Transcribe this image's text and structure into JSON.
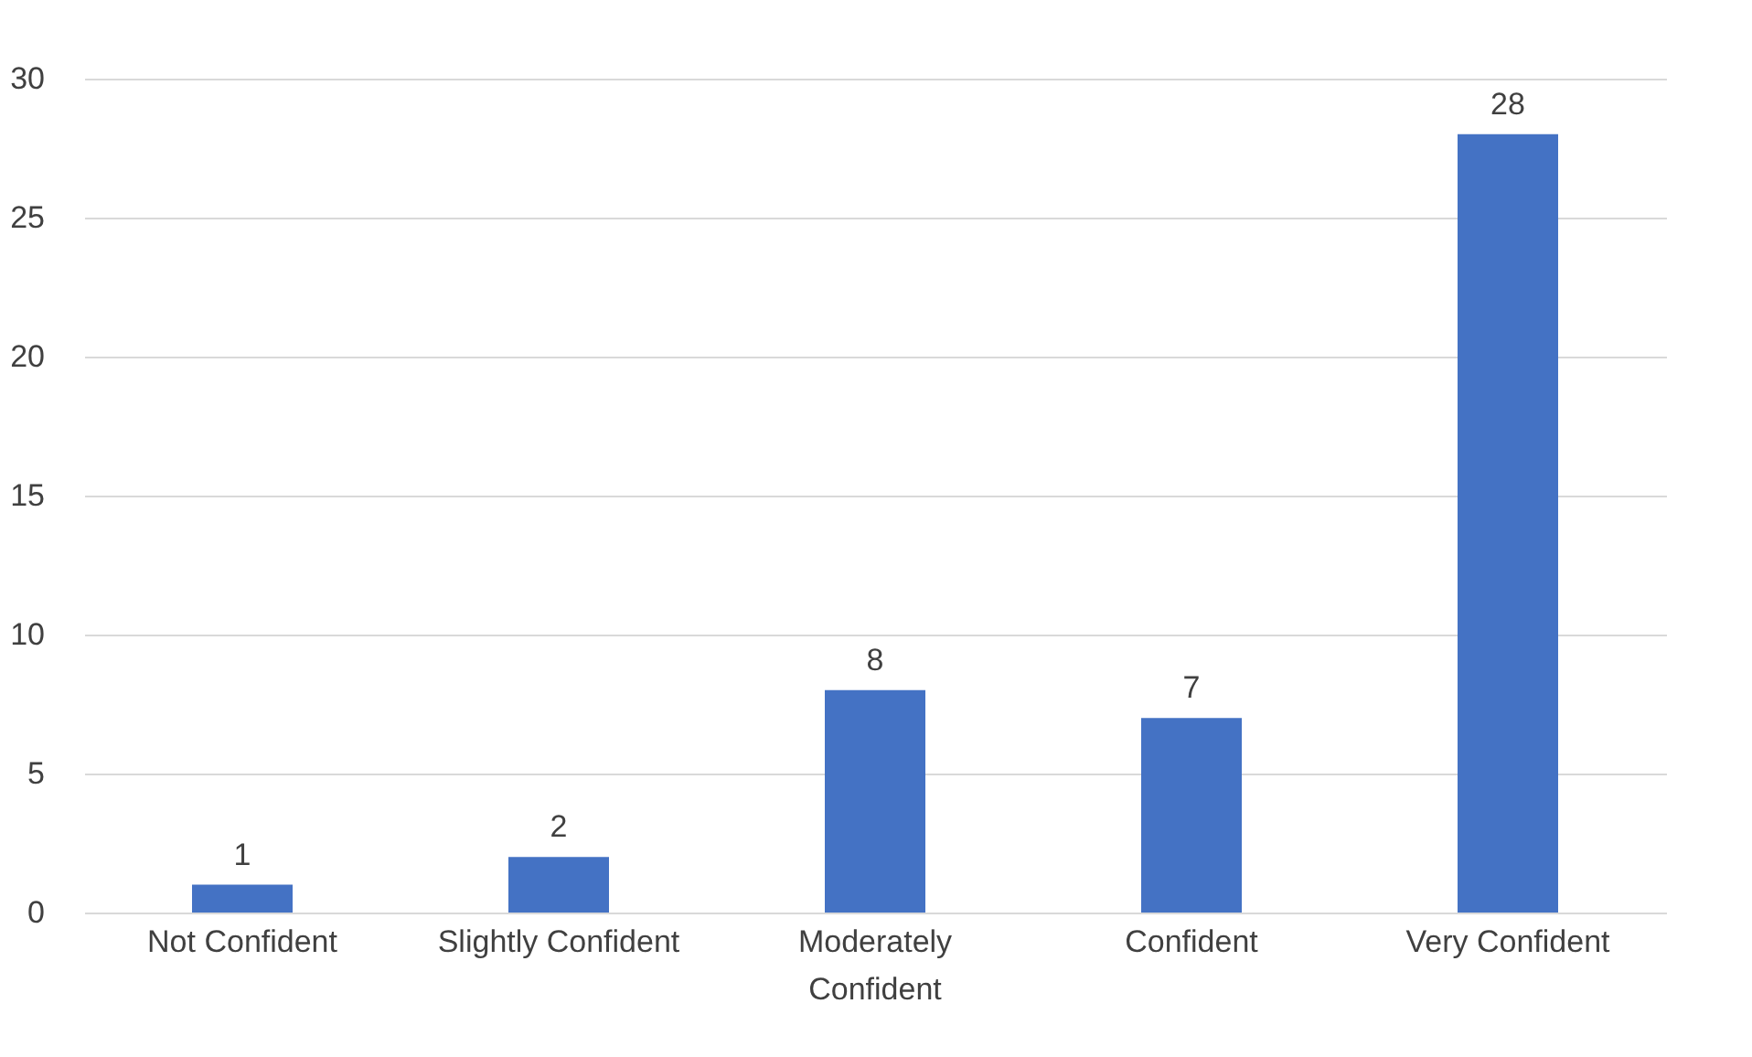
{
  "chart_data": {
    "type": "bar",
    "categories": [
      "Not Confident",
      "Slightly Confident",
      "Moderately Confident",
      "Confident",
      "Very Confident"
    ],
    "values": [
      1,
      2,
      8,
      7,
      28
    ],
    "color": "#4472c4",
    "ylim": [
      0,
      30
    ],
    "yticks": [
      0,
      5,
      10,
      15,
      20,
      25,
      30
    ],
    "grid": "y",
    "data_labels": true
  }
}
